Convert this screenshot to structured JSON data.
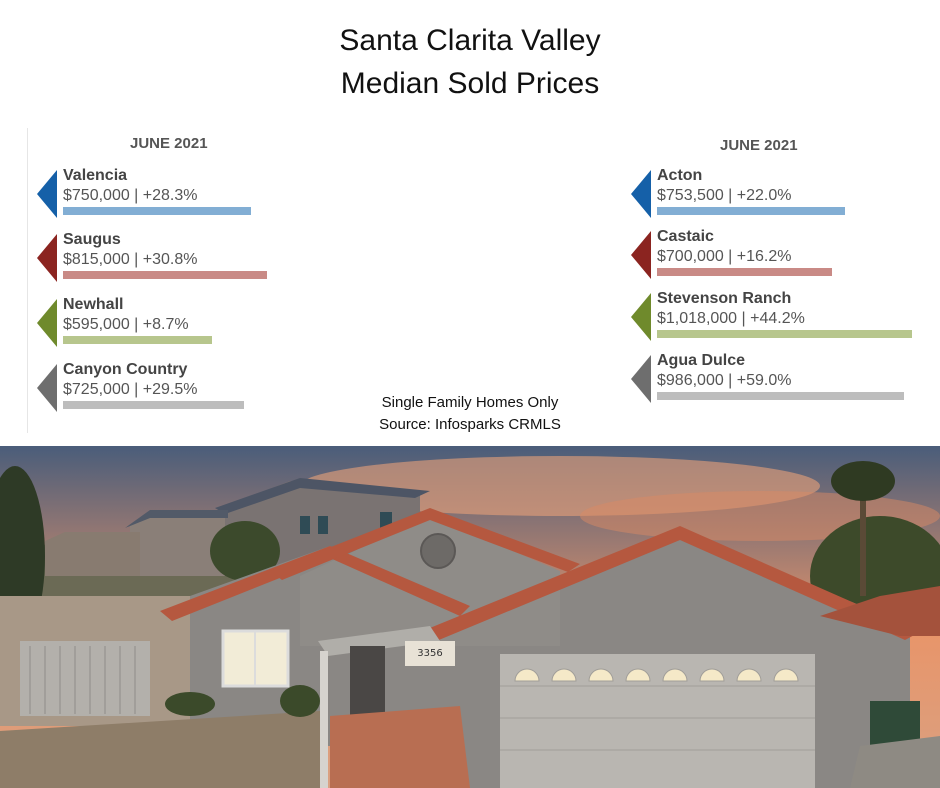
{
  "title_line1": "Santa Clarita Valley",
  "title_line2": "Median Sold Prices",
  "chart_data": [
    {
      "type": "bar",
      "period": "JUNE 2021",
      "categories": [
        "Valencia",
        "Saugus",
        "Newhall",
        "Canyon Country"
      ],
      "values": [
        750000,
        815000,
        595000,
        725000
      ],
      "changes": [
        "+28.3%",
        "+30.8%",
        "+8.7%",
        "+29.5%"
      ],
      "labels": [
        "$750,000 | +28.3%",
        "$815,000 | +30.8%",
        "$595,000 | +8.7%",
        "$725,000 | +29.5%"
      ],
      "colors": [
        "#1560a8",
        "#8b2420",
        "#6f8a2c",
        "#6e6e6e"
      ],
      "bar_colors": [
        "#82aed4",
        "#c98a86",
        "#b7c68d",
        "#bdbdbd"
      ]
    },
    {
      "type": "bar",
      "period": "JUNE 2021",
      "categories": [
        "Acton",
        "Castaic",
        "Stevenson Ranch",
        "Agua Dulce"
      ],
      "values": [
        753500,
        700000,
        1018000,
        986000
      ],
      "changes": [
        "+22.0%",
        "+16.2%",
        "+44.2%",
        "+59.0%"
      ],
      "labels": [
        "$753,500 | +22.0%",
        "$700,000 | +16.2%",
        "$1,018,000 | +44.2%",
        "$986,000 | +59.0%"
      ],
      "colors": [
        "#1560a8",
        "#8b2420",
        "#6f8a2c",
        "#6e6e6e"
      ],
      "bar_colors": [
        "#82aed4",
        "#c98a86",
        "#b7c68d",
        "#bdbdbd"
      ]
    }
  ],
  "note_line1": "Single Family Homes Only",
  "note_line2": "Source: Infosparks CRMLS",
  "photo": {
    "house_number": "3356",
    "colors": {
      "sky_top": "#4a5d7a",
      "sky_glow": "#e8956a",
      "stucco": "#8a8784",
      "roof_tile": "#b5583f",
      "garage_door": "#b9b6b1"
    }
  }
}
